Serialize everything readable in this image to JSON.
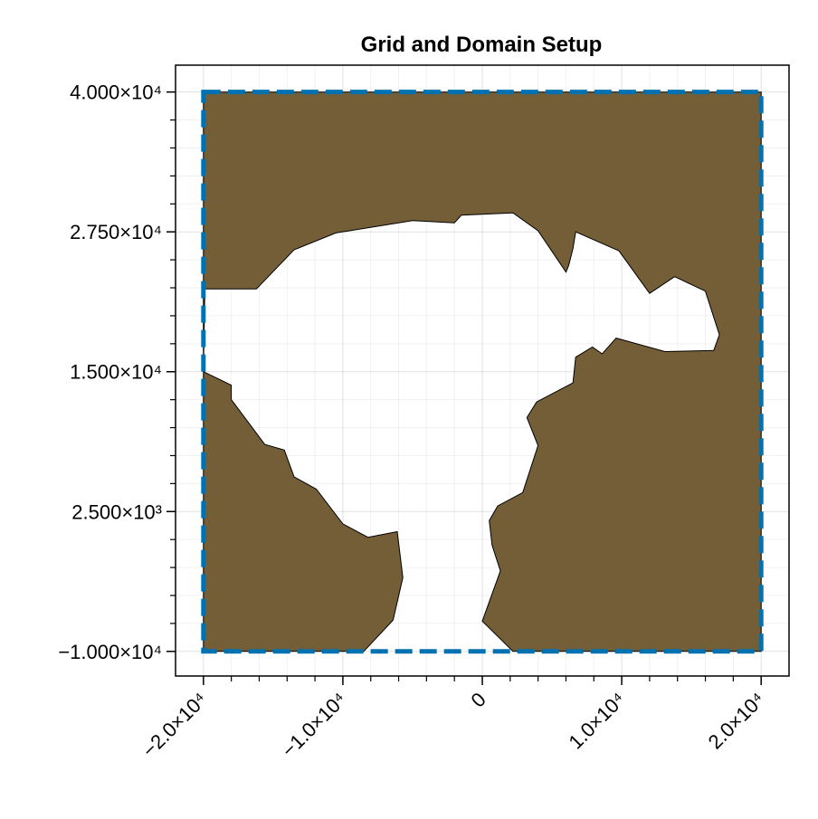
{
  "chart_data": {
    "type": "area",
    "title": "Grid and Domain Setup",
    "xlabel": "",
    "ylabel": "",
    "xlim": [
      -22000,
      22000
    ],
    "ylim": [
      -12200,
      42400
    ],
    "grid": true,
    "legend": "none",
    "x_ticks": [
      {
        "value": -20000,
        "label": "−2.0×10⁴"
      },
      {
        "value": -10000,
        "label": "−1.0×10⁴"
      },
      {
        "value": 0,
        "label": "0"
      },
      {
        "value": 10000,
        "label": "1.0×10⁴"
      },
      {
        "value": 20000,
        "label": "2.0×10⁴"
      }
    ],
    "y_ticks": [
      {
        "value": 40000,
        "label": "4.000×10⁴"
      },
      {
        "value": 27500,
        "label": "2.750×10⁴"
      },
      {
        "value": 15000,
        "label": "1.500×10⁴"
      },
      {
        "value": 2500,
        "label": "2.500×10³"
      },
      {
        "value": -10000,
        "label": "−1.000×10⁴"
      }
    ],
    "domain_box": {
      "x": [
        -20000,
        20000
      ],
      "y": [
        -10000,
        40000
      ],
      "color": "#0072b2",
      "style": "dashed"
    },
    "land_color": "#735e38",
    "land_polygon": [
      [
        -20000,
        40000
      ],
      [
        20000,
        40000
      ],
      [
        20000,
        -10000
      ],
      [
        2200,
        -10000
      ],
      [
        0,
        -7300
      ],
      [
        1300,
        -2800
      ],
      [
        700,
        -500
      ],
      [
        500,
        1700
      ],
      [
        1100,
        3000
      ],
      [
        2900,
        4200
      ],
      [
        4000,
        8400
      ],
      [
        3200,
        10900
      ],
      [
        3900,
        12300
      ],
      [
        6500,
        14000
      ],
      [
        6700,
        16300
      ],
      [
        7900,
        17200
      ],
      [
        8600,
        16600
      ],
      [
        9600,
        18000
      ],
      [
        13100,
        16800
      ],
      [
        16600,
        16900
      ],
      [
        17000,
        18300
      ],
      [
        16000,
        22200
      ],
      [
        13800,
        23500
      ],
      [
        12000,
        22000
      ],
      [
        9800,
        25800
      ],
      [
        6700,
        27500
      ],
      [
        6500,
        26000
      ],
      [
        6200,
        24500
      ],
      [
        6000,
        23900
      ],
      [
        4000,
        27600
      ],
      [
        2200,
        29200
      ],
      [
        -1500,
        29000
      ],
      [
        -2000,
        28300
      ],
      [
        -5000,
        28500
      ],
      [
        -10500,
        27400
      ],
      [
        -13500,
        25900
      ],
      [
        -16200,
        22400
      ],
      [
        -19900,
        22400
      ],
      [
        -20000,
        15000
      ],
      [
        -18000,
        13800
      ],
      [
        -18000,
        12500
      ],
      [
        -15600,
        8500
      ],
      [
        -14200,
        8000
      ],
      [
        -13500,
        5600
      ],
      [
        -11900,
        4500
      ],
      [
        -10000,
        1400
      ],
      [
        -8200,
        200
      ],
      [
        -6100,
        700
      ],
      [
        -5700,
        -3400
      ],
      [
        -6400,
        -7200
      ],
      [
        -8500,
        -10000
      ],
      [
        -20000,
        -10000
      ]
    ]
  }
}
